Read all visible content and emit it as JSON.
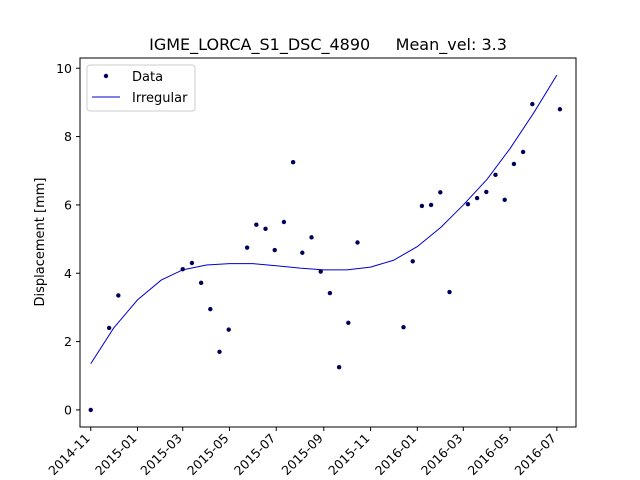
{
  "chart_data": {
    "type": "scatter",
    "title": "IGME_LORCA_S1_DSC_4890     Mean_vel: 3.3",
    "xlabel": "",
    "ylabel": "Displacement [mm]",
    "xlim": [
      "2014-10-18",
      "2016-07-26"
    ],
    "ylim": [
      -0.5,
      10.3
    ],
    "yticks": [
      0,
      2,
      4,
      6,
      8,
      10
    ],
    "xticks": [
      {
        "date": "2014-11-01",
        "label": "2014-11"
      },
      {
        "date": "2015-01-01",
        "label": "2015-01"
      },
      {
        "date": "2015-03-01",
        "label": "2015-03"
      },
      {
        "date": "2015-05-01",
        "label": "2015-05"
      },
      {
        "date": "2015-07-01",
        "label": "2015-07"
      },
      {
        "date": "2015-09-01",
        "label": "2015-09"
      },
      {
        "date": "2015-11-01",
        "label": "2015-11"
      },
      {
        "date": "2016-01-01",
        "label": "2016-01"
      },
      {
        "date": "2016-03-01",
        "label": "2016-03"
      },
      {
        "date": "2016-05-01",
        "label": "2016-05"
      },
      {
        "date": "2016-07-01",
        "label": "2016-07"
      }
    ],
    "legend": {
      "placement": "top-left",
      "entries": [
        "Data",
        "Irregular"
      ]
    },
    "grid": false,
    "series": [
      {
        "name": "Data",
        "kind": "points",
        "color": "#00005a",
        "points": [
          {
            "x": "2014-11-01",
            "y": 0.0
          },
          {
            "x": "2014-11-25",
            "y": 2.4
          },
          {
            "x": "2014-12-07",
            "y": 3.35
          },
          {
            "x": "2015-03-01",
            "y": 4.12
          },
          {
            "x": "2015-03-13",
            "y": 4.3
          },
          {
            "x": "2015-03-25",
            "y": 3.72
          },
          {
            "x": "2015-04-06",
            "y": 2.95
          },
          {
            "x": "2015-04-18",
            "y": 1.7
          },
          {
            "x": "2015-04-30",
            "y": 2.35
          },
          {
            "x": "2015-05-24",
            "y": 4.75
          },
          {
            "x": "2015-06-05",
            "y": 5.42
          },
          {
            "x": "2015-06-17",
            "y": 5.3
          },
          {
            "x": "2015-06-29",
            "y": 4.68
          },
          {
            "x": "2015-07-11",
            "y": 5.5
          },
          {
            "x": "2015-07-23",
            "y": 7.25
          },
          {
            "x": "2015-08-04",
            "y": 4.6
          },
          {
            "x": "2015-08-16",
            "y": 5.05
          },
          {
            "x": "2015-08-28",
            "y": 4.05
          },
          {
            "x": "2015-09-09",
            "y": 3.42
          },
          {
            "x": "2015-09-21",
            "y": 1.25
          },
          {
            "x": "2015-10-03",
            "y": 2.55
          },
          {
            "x": "2015-10-15",
            "y": 4.9
          },
          {
            "x": "2015-12-14",
            "y": 2.42
          },
          {
            "x": "2015-12-26",
            "y": 4.35
          },
          {
            "x": "2016-01-07",
            "y": 5.97
          },
          {
            "x": "2016-01-19",
            "y": 6.0
          },
          {
            "x": "2016-01-31",
            "y": 6.37
          },
          {
            "x": "2016-02-12",
            "y": 3.45
          },
          {
            "x": "2016-03-07",
            "y": 6.02
          },
          {
            "x": "2016-03-19",
            "y": 6.2
          },
          {
            "x": "2016-03-31",
            "y": 6.38
          },
          {
            "x": "2016-04-12",
            "y": 6.88
          },
          {
            "x": "2016-04-24",
            "y": 6.15
          },
          {
            "x": "2016-05-06",
            "y": 7.2
          },
          {
            "x": "2016-05-18",
            "y": 7.55
          },
          {
            "x": "2016-05-30",
            "y": 8.95
          },
          {
            "x": "2016-07-05",
            "y": 8.8
          }
        ]
      },
      {
        "name": "Irregular",
        "kind": "line",
        "color": "#0000cc",
        "points": [
          {
            "x": "2014-11-01",
            "y": 1.35
          },
          {
            "x": "2014-12-01",
            "y": 2.4
          },
          {
            "x": "2015-01-01",
            "y": 3.22
          },
          {
            "x": "2015-02-01",
            "y": 3.8
          },
          {
            "x": "2015-03-01",
            "y": 4.1
          },
          {
            "x": "2015-04-01",
            "y": 4.24
          },
          {
            "x": "2015-05-01",
            "y": 4.28
          },
          {
            "x": "2015-06-01",
            "y": 4.28
          },
          {
            "x": "2015-07-01",
            "y": 4.22
          },
          {
            "x": "2015-08-01",
            "y": 4.15
          },
          {
            "x": "2015-09-01",
            "y": 4.1
          },
          {
            "x": "2015-10-01",
            "y": 4.1
          },
          {
            "x": "2015-11-01",
            "y": 4.18
          },
          {
            "x": "2015-12-01",
            "y": 4.38
          },
          {
            "x": "2016-01-01",
            "y": 4.78
          },
          {
            "x": "2016-02-01",
            "y": 5.35
          },
          {
            "x": "2016-03-01",
            "y": 6.0
          },
          {
            "x": "2016-04-01",
            "y": 6.75
          },
          {
            "x": "2016-05-01",
            "y": 7.65
          },
          {
            "x": "2016-06-01",
            "y": 8.7
          },
          {
            "x": "2016-07-01",
            "y": 9.8
          }
        ]
      }
    ]
  }
}
